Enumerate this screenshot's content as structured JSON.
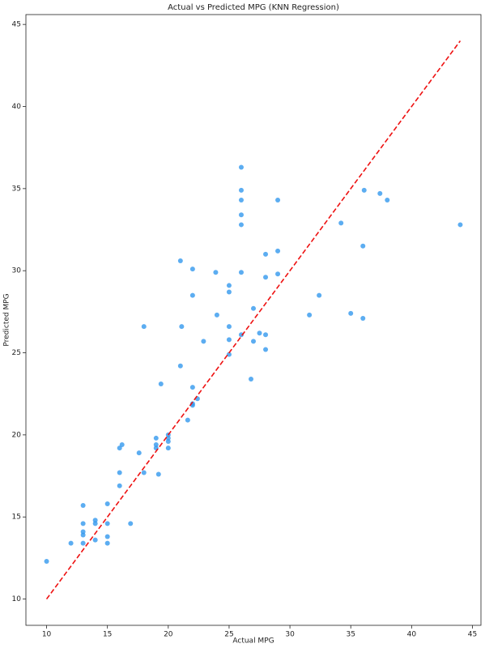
{
  "chart_data": {
    "type": "scatter",
    "title": "Actual vs Predicted MPG (KNN Regression)",
    "x_label": "Actual MPG",
    "y_label": "Predicted MPG",
    "xlim": [
      8.3,
      45.7
    ],
    "ylim": [
      8.4,
      45.6
    ],
    "xticks": [
      10,
      15,
      20,
      25,
      30,
      35,
      40,
      45
    ],
    "yticks": [
      10,
      15,
      20,
      25,
      30,
      35,
      40,
      45
    ],
    "grid": false,
    "series": [
      {
        "color": "#3399ee",
        "x": [
          10,
          12,
          13,
          13,
          13,
          13,
          13,
          14,
          14,
          14,
          15,
          15,
          15,
          15,
          16,
          16,
          16,
          16.2,
          16.9,
          17.6,
          18,
          18,
          19,
          19,
          19,
          19.2,
          19.4,
          20,
          20,
          20,
          20,
          21,
          21,
          21.1,
          21.6,
          22,
          22,
          22,
          22,
          22,
          22.4,
          22.9,
          23.9,
          24,
          25,
          25,
          25,
          25,
          25,
          26,
          26,
          26,
          26,
          26,
          26,
          26,
          26.8,
          27,
          27,
          27.5,
          28,
          28,
          28,
          28,
          29,
          29,
          29,
          31.6,
          32.4,
          34.2,
          35,
          36,
          36,
          36.1,
          37.4,
          38,
          44
        ],
        "y": [
          12.3,
          13.4,
          15.7,
          14.6,
          14.1,
          13.9,
          13.4,
          14.8,
          14.6,
          13.6,
          15.8,
          14.6,
          13.8,
          13.4,
          17.7,
          16.9,
          19.2,
          19.4,
          14.6,
          18.9,
          17.7,
          26.6,
          19.8,
          19.4,
          19.2,
          17.6,
          23.1,
          19.8,
          19.6,
          19.2,
          20.0,
          30.6,
          24.2,
          26.6,
          20.9,
          30.1,
          28.5,
          22.9,
          21.9,
          21.8,
          22.2,
          25.7,
          29.9,
          27.3,
          29.1,
          28.7,
          26.6,
          25.8,
          24.9,
          36.3,
          34.9,
          34.3,
          33.4,
          32.8,
          29.9,
          26.1,
          23.4,
          27.7,
          25.7,
          26.2,
          31.0,
          29.6,
          26.1,
          25.2,
          34.3,
          31.2,
          29.8,
          27.3,
          28.5,
          32.9,
          27.4,
          31.5,
          27.1,
          34.9,
          34.7,
          34.3,
          32.8
        ]
      }
    ],
    "reference_line": {
      "x": [
        10,
        44
      ],
      "y": [
        10,
        44
      ],
      "color": "#ee1111",
      "style": "dashed"
    }
  }
}
